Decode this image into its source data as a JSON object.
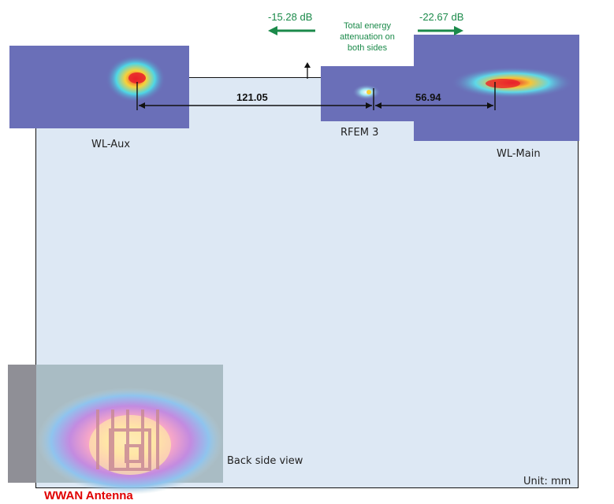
{
  "attenuation": {
    "left_db": "-15.28 dB",
    "right_db": "-22.67 dB",
    "note_lines": [
      "Total energy",
      "attenuation on",
      "both sides"
    ]
  },
  "dimensions": {
    "left_distance": "121.05",
    "right_distance": "56.94"
  },
  "antenna_labels": {
    "wl_aux": "WL-Aux",
    "rfem": "RFEM 3",
    "wl_main": "WL-Main",
    "wwan": "WWAN Antenna"
  },
  "view_label": "Back side view",
  "unit_label": "Unit: mm",
  "colors": {
    "board_fill": "#dde8f4",
    "heatmap_bg": "#6a6fb8",
    "arrow_green": "#1b8a4a",
    "wwan_red": "#e00000"
  }
}
